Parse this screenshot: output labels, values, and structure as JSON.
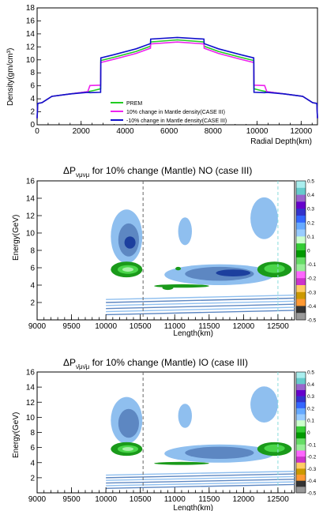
{
  "chart_data": [
    {
      "type": "line",
      "xlabel": "Radial Depth(km)",
      "ylabel": "Density(gm/cm³)",
      "xlim": [
        0,
        12742
      ],
      "ylim": [
        0,
        18
      ],
      "xticks": [
        0,
        2000,
        4000,
        6000,
        8000,
        10000,
        12000
      ],
      "yticks": [
        0,
        2,
        4,
        6,
        8,
        10,
        12,
        14,
        16,
        18
      ],
      "legend_position": "bottom-center",
      "series": [
        {
          "name": "PREM",
          "color": "#22cc22",
          "points": [
            [
              0,
              1.0
            ],
            [
              30,
              3.3
            ],
            [
              220,
              3.4
            ],
            [
              670,
              4.38
            ],
            [
              1500,
              4.75
            ],
            [
              2300,
              5.1
            ],
            [
              2600,
              5.3
            ],
            [
              2885,
              5.55
            ],
            [
              2895,
              9.9
            ],
            [
              3500,
              10.4
            ],
            [
              4500,
              11.3
            ],
            [
              5150,
              12.1
            ],
            [
              5160,
              12.76
            ],
            [
              6371,
              13.08
            ],
            [
              7582,
              12.76
            ],
            [
              7592,
              12.1
            ],
            [
              8242,
              11.3
            ],
            [
              9242,
              10.4
            ],
            [
              9847,
              9.9
            ],
            [
              9857,
              5.55
            ],
            [
              10142,
              5.3
            ],
            [
              10442,
              5.1
            ],
            [
              11242,
              4.75
            ],
            [
              12072,
              4.38
            ],
            [
              12522,
              3.4
            ],
            [
              12712,
              3.3
            ],
            [
              12742,
              1.0
            ]
          ]
        },
        {
          "name": "10% change in Mantle density(CASE III)",
          "color": "#ee22ee",
          "points": [
            [
              0,
              1.0
            ],
            [
              30,
              3.3
            ],
            [
              220,
              3.4
            ],
            [
              670,
              4.38
            ],
            [
              1500,
              4.75
            ],
            [
              2300,
              5.1
            ],
            [
              2400,
              6.05
            ],
            [
              2885,
              6.1
            ],
            [
              2895,
              9.6
            ],
            [
              3500,
              10.1
            ],
            [
              4500,
              11.0
            ],
            [
              5150,
              11.8
            ],
            [
              5160,
              12.45
            ],
            [
              6371,
              12.75
            ],
            [
              7582,
              12.45
            ],
            [
              7592,
              11.8
            ],
            [
              8242,
              11.0
            ],
            [
              9242,
              10.1
            ],
            [
              9847,
              9.6
            ],
            [
              9857,
              6.1
            ],
            [
              10342,
              6.05
            ],
            [
              10442,
              5.1
            ],
            [
              11242,
              4.75
            ],
            [
              12072,
              4.38
            ],
            [
              12522,
              3.4
            ],
            [
              12712,
              3.3
            ],
            [
              12742,
              1.0
            ]
          ]
        },
        {
          "name": "-10% change in Mantle density(CASE III)",
          "color": "#1111cc",
          "points": [
            [
              0,
              1.0
            ],
            [
              30,
              3.3
            ],
            [
              220,
              3.4
            ],
            [
              670,
              4.38
            ],
            [
              1500,
              4.75
            ],
            [
              2300,
              5.0
            ],
            [
              2400,
              4.95
            ],
            [
              2885,
              5.0
            ],
            [
              2895,
              10.3
            ],
            [
              3500,
              10.8
            ],
            [
              4500,
              11.7
            ],
            [
              5150,
              12.5
            ],
            [
              5160,
              13.2
            ],
            [
              6371,
              13.45
            ],
            [
              7582,
              13.2
            ],
            [
              7592,
              12.5
            ],
            [
              8242,
              11.7
            ],
            [
              9242,
              10.8
            ],
            [
              9847,
              10.3
            ],
            [
              9857,
              5.0
            ],
            [
              10342,
              4.95
            ],
            [
              10442,
              5.0
            ],
            [
              11242,
              4.75
            ],
            [
              12072,
              4.38
            ],
            [
              12522,
              3.4
            ],
            [
              12712,
              3.3
            ],
            [
              12742,
              1.0
            ]
          ]
        }
      ]
    },
    {
      "type": "heatmap",
      "title_prefix": "ΔP",
      "title_sub": "ν",
      "title_text": "for 10% change (Mantle) NO (case III)",
      "xlabel": "Length(km)",
      "ylabel": "Energy(GeV)",
      "xlim": [
        9000,
        12742
      ],
      "ylim": [
        0,
        16
      ],
      "xticks": [
        9000,
        9500,
        10000,
        10500,
        11000,
        11500,
        12000,
        12500
      ],
      "yticks": [
        2,
        4,
        6,
        8,
        10,
        12,
        14,
        16
      ],
      "marker_lines": [
        10540,
        12500
      ],
      "regions": [
        {
          "x": 10300,
          "y": 9.6,
          "rx": 230,
          "ry": 3.1,
          "c": "#8fbfef"
        },
        {
          "x": 10330,
          "y": 9.2,
          "rx": 150,
          "ry": 1.9,
          "c": "#5d87c2"
        },
        {
          "x": 10350,
          "y": 8.9,
          "rx": 80,
          "ry": 0.7,
          "c": "#1c3f9e"
        },
        {
          "x": 11150,
          "y": 10.2,
          "rx": 100,
          "ry": 1.6,
          "c": "#8fbfef"
        },
        {
          "x": 12300,
          "y": 11.7,
          "rx": 200,
          "ry": 2.4,
          "c": "#8fbfef"
        },
        {
          "x": 11650,
          "y": 5.2,
          "rx": 800,
          "ry": 1.2,
          "c": "#8fbfef"
        },
        {
          "x": 11650,
          "y": 5.3,
          "rx": 500,
          "ry": 0.8,
          "c": "#5d87c2"
        },
        {
          "x": 11850,
          "y": 5.4,
          "rx": 250,
          "ry": 0.4,
          "c": "#1c3f9e"
        },
        {
          "x": 10300,
          "y": 5.8,
          "rx": 230,
          "ry": 0.9,
          "c": "#1a9a1a"
        },
        {
          "x": 10320,
          "y": 5.8,
          "rx": 150,
          "ry": 0.5,
          "c": "#4ad64a"
        },
        {
          "x": 10320,
          "y": 5.8,
          "rx": 80,
          "ry": 0.25,
          "c": "#a8f0a8"
        },
        {
          "x": 12450,
          "y": 5.8,
          "rx": 250,
          "ry": 0.9,
          "c": "#1a9a1a"
        },
        {
          "x": 12450,
          "y": 5.9,
          "rx": 150,
          "ry": 0.5,
          "c": "#4ad64a"
        },
        {
          "x": 10900,
          "y": 3.7,
          "rx": 80,
          "ry": 0.25,
          "c": "#1a9a1a"
        },
        {
          "x": 11050,
          "y": 5.9,
          "rx": 40,
          "ry": 0.2,
          "c": "#1a9a1a"
        },
        {
          "x": 11100,
          "y": 3.9,
          "rx": 400,
          "ry": 0.2,
          "c": "#1a9a1a"
        }
      ],
      "colorbar": [
        0.5,
        0.4,
        0.3,
        0.2,
        0.1,
        0,
        -0.1,
        -0.2,
        -0.3,
        -0.4,
        -0.5
      ]
    },
    {
      "type": "heatmap",
      "title_prefix": "ΔP",
      "title_sub": "ν̄",
      "title_text": "for 10% change (Mantle) IO (case III)",
      "xlabel": "Length(km)",
      "ylabel": "Energy(GeV)",
      "xlim": [
        9000,
        12742
      ],
      "ylim": [
        0,
        16
      ],
      "xticks": [
        9000,
        9500,
        10000,
        10500,
        11000,
        11500,
        12000,
        12500
      ],
      "yticks": [
        2,
        4,
        6,
        8,
        10,
        12,
        14,
        16
      ],
      "marker_lines": [
        10540,
        12500
      ],
      "regions": [
        {
          "x": 10300,
          "y": 9.6,
          "rx": 230,
          "ry": 3.1,
          "c": "#8fbfef"
        },
        {
          "x": 10330,
          "y": 9.2,
          "rx": 150,
          "ry": 1.9,
          "c": "#5d87c2"
        },
        {
          "x": 11150,
          "y": 10.2,
          "rx": 100,
          "ry": 1.6,
          "c": "#8fbfef"
        },
        {
          "x": 12300,
          "y": 11.7,
          "rx": 200,
          "ry": 2.4,
          "c": "#8fbfef"
        },
        {
          "x": 11650,
          "y": 5.2,
          "rx": 800,
          "ry": 1.2,
          "c": "#8fbfef"
        },
        {
          "x": 11650,
          "y": 5.3,
          "rx": 500,
          "ry": 0.8,
          "c": "#5d87c2"
        },
        {
          "x": 10300,
          "y": 5.8,
          "rx": 230,
          "ry": 0.9,
          "c": "#1a9a1a"
        },
        {
          "x": 10320,
          "y": 5.8,
          "rx": 150,
          "ry": 0.5,
          "c": "#4ad64a"
        },
        {
          "x": 10320,
          "y": 5.8,
          "rx": 80,
          "ry": 0.25,
          "c": "#a8f0a8"
        },
        {
          "x": 12450,
          "y": 5.8,
          "rx": 250,
          "ry": 0.9,
          "c": "#1a9a1a"
        },
        {
          "x": 12450,
          "y": 5.9,
          "rx": 150,
          "ry": 0.5,
          "c": "#4ad64a"
        },
        {
          "x": 11100,
          "y": 3.9,
          "rx": 400,
          "ry": 0.2,
          "c": "#1a9a1a"
        }
      ],
      "colorbar": [
        0.5,
        0.4,
        0.3,
        0.2,
        0.1,
        0,
        -0.1,
        -0.2,
        -0.3,
        -0.4,
        -0.5
      ]
    }
  ],
  "colors": {
    "colorbar": [
      "#aaeeee",
      "#66cccc",
      "#9966cc",
      "#6600cc",
      "#3333cc",
      "#3366ff",
      "#66aaff",
      "#99ccff",
      "#ccffcc",
      "#33cc33",
      "#009900",
      "#66dd66",
      "#99ee99",
      "#ff66ff",
      "#cc33cc",
      "#ffcc66",
      "#cc9900",
      "#ff9933",
      "#333333",
      "#999999"
    ]
  }
}
